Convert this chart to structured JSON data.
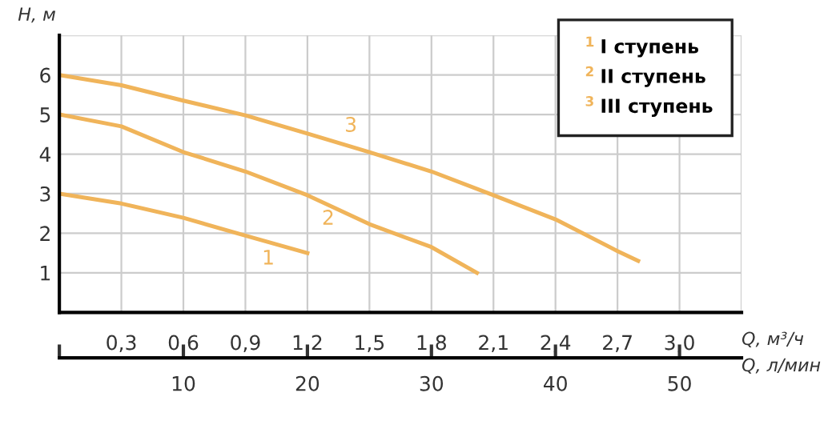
{
  "chart_data": {
    "type": "line",
    "xlabel": "Q, м³/ч",
    "ylabel": "H, м",
    "x2label": "Q, л/мин",
    "xlim": [
      0,
      3.3
    ],
    "xticks": [
      {
        "value": 0,
        "label": null
      },
      {
        "value": 0.3,
        "label": "0,3"
      },
      {
        "value": 0.6,
        "label": "0,6"
      },
      {
        "value": 0.9,
        "label": "0,9"
      },
      {
        "value": 1.2,
        "label": "1,2"
      },
      {
        "value": 1.5,
        "label": "1,5"
      },
      {
        "value": 1.8,
        "label": "1,8"
      },
      {
        "value": 2.1,
        "label": "2,1"
      },
      {
        "value": 2.4,
        "label": "2,4"
      },
      {
        "value": 2.7,
        "label": "2,7"
      },
      {
        "value": 3.0,
        "label": "3,0"
      },
      {
        "value": 3.3,
        "label": null
      }
    ],
    "ylim": [
      0,
      7
    ],
    "yticks": [
      1,
      2,
      3,
      4,
      5,
      6,
      {
        "value": 7,
        "label": null
      }
    ],
    "x2lim": [
      0,
      55
    ],
    "x2ticks": [
      {
        "value": 0,
        "label": null
      },
      10,
      20,
      30,
      40,
      50
    ],
    "grid": true,
    "legend": "top right",
    "marker": "none",
    "line_style": "solid",
    "series": [
      {
        "name": "I ступень",
        "color": "#f0b45a",
        "x": [
          0,
          0.3,
          0.6,
          0.9,
          1.2
        ],
        "values": [
          3,
          2.75,
          2.39,
          1.94,
          1.5
        ]
      },
      {
        "name": "II ступень",
        "color": "#f0b45a",
        "x": [
          0,
          0.3,
          0.6,
          0.9,
          1.2,
          1.5,
          1.8,
          2.02
        ],
        "values": [
          5,
          4.7,
          4.05,
          3.56,
          2.96,
          2.23,
          1.65,
          1.0
        ]
      },
      {
        "name": "III ступень",
        "color": "#f0b45a",
        "x": [
          0,
          0.3,
          0.6,
          0.9,
          1.2,
          1.5,
          1.8,
          2.1,
          2.4,
          2.7,
          2.8
        ],
        "values": [
          6,
          5.74,
          5.35,
          4.98,
          4.52,
          4.05,
          3.56,
          2.96,
          2.35,
          1.55,
          1.3
        ]
      }
    ],
    "annotations": [
      {
        "text": "1",
        "x": 1.0,
        "y": 1.8
      },
      {
        "text": "2",
        "x": 1.29,
        "y": 2.75
      },
      {
        "text": "3",
        "x": 1.41,
        "y": 4.2
      }
    ]
  }
}
